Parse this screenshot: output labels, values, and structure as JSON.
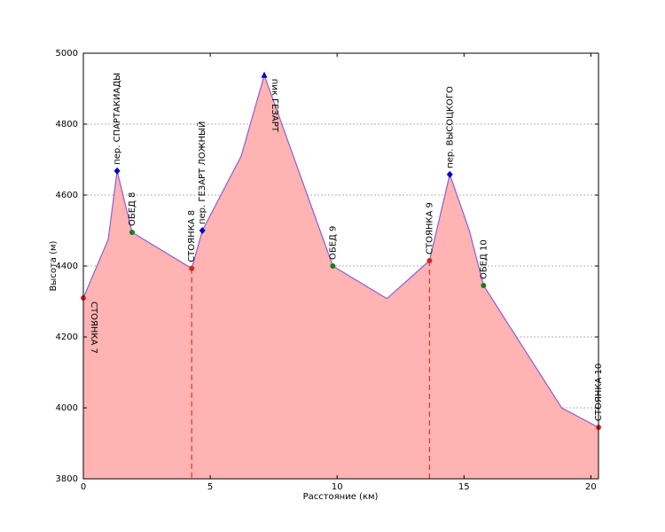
{
  "chart_data": {
    "type": "area",
    "xlabel": "Расстояние (км)",
    "ylabel": "Высота (м)",
    "xlim": [
      0,
      20.3
    ],
    "ylim": [
      3800,
      5000
    ],
    "xticks": [
      0,
      5,
      10,
      15,
      20
    ],
    "yticks": [
      3800,
      4000,
      4200,
      4400,
      4600,
      4800,
      5000
    ],
    "grid": true,
    "fill_color": "#ffb3b3",
    "line_color": "#8a5fd6",
    "series": [
      {
        "x": [
          0,
          0.98,
          1.33,
          1.92,
          4.27,
          4.69,
          6.22,
          7.13,
          9.83,
          11.96,
          13.64,
          14.44,
          15.21,
          15.77,
          18.85,
          20.3
        ],
        "y": [
          4310,
          4475,
          4668,
          4495,
          4393,
          4500,
          4710,
          4938,
          4400,
          4308,
          4415,
          4658,
          4500,
          4345,
          4000,
          3945
        ]
      }
    ],
    "annotations": [
      {
        "label": "СТОЯНКА 7",
        "x": 0,
        "y": 4310,
        "marker": "circle",
        "color": "#d62728",
        "label_position": "below"
      },
      {
        "label": "пер. СПАРТАКИАДЫ",
        "x": 1.33,
        "y": 4668,
        "marker": "diamond",
        "color": "#0000cc",
        "label_position": "above"
      },
      {
        "label": "ОБЕД 8",
        "x": 1.92,
        "y": 4495,
        "marker": "circle",
        "color": "#1a7a1a",
        "label_position": "above"
      },
      {
        "label": "СТОЯНКА 8",
        "x": 4.27,
        "y": 4393,
        "marker": "circle",
        "color": "#d62728",
        "label_position": "above",
        "dashed_line": true
      },
      {
        "label": "пер. ГЕЗАРТ ЛОЖНЫЙ",
        "x": 4.69,
        "y": 4500,
        "marker": "diamond",
        "color": "#0000cc",
        "label_position": "above"
      },
      {
        "label": "пик ГЕЗАРТ",
        "x": 7.13,
        "y": 4938,
        "marker": "triangle",
        "color": "#0000cc",
        "label_position": "below"
      },
      {
        "label": "ОБЕД 9",
        "x": 9.83,
        "y": 4400,
        "marker": "circle",
        "color": "#1a7a1a",
        "label_position": "above"
      },
      {
        "label": "СТОЯНКА 9",
        "x": 13.64,
        "y": 4415,
        "marker": "circle",
        "color": "#d62728",
        "label_position": "above",
        "dashed_line": true
      },
      {
        "label": "пер. ВЫСОЦКОГО",
        "x": 14.44,
        "y": 4658,
        "marker": "diamond",
        "color": "#0000cc",
        "label_position": "above"
      },
      {
        "label": "ОБЕД 10",
        "x": 15.77,
        "y": 4345,
        "marker": "circle",
        "color": "#1a7a1a",
        "label_position": "above"
      },
      {
        "label": "СТОЯНКА 10",
        "x": 20.3,
        "y": 3945,
        "marker": "circle",
        "color": "#d62728",
        "label_position": "above"
      }
    ]
  }
}
